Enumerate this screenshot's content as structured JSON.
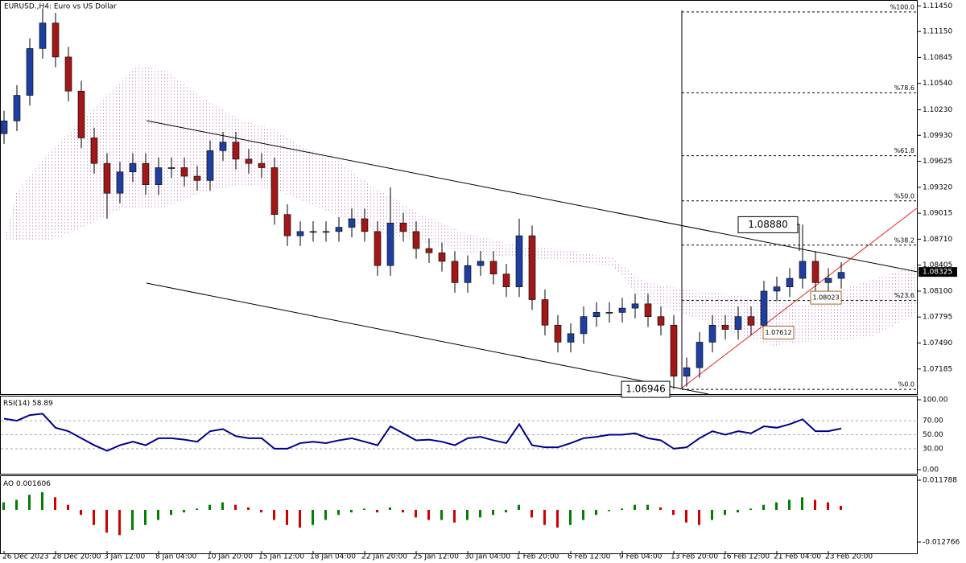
{
  "chart_data": {
    "type": "candlestick",
    "title": "EURUSD.,H4:  Euro vs US Dollar",
    "categories": [
      "26 Dec 2023",
      null,
      null,
      null,
      "28 Dec 20:00",
      null,
      null,
      null,
      "3 Jan 12:00",
      null,
      null,
      null,
      "8 Jan 04:00",
      null,
      null,
      null,
      "10 Jan 20:00",
      null,
      null,
      null,
      "15 Jan 12:00",
      null,
      null,
      null,
      "18 Jan 04:00",
      null,
      null,
      null,
      "22 Jan 20:00",
      null,
      null,
      null,
      "25 Jan 12:00",
      null,
      null,
      null,
      "30 Jan 04:00",
      null,
      null,
      null,
      "1 Feb 20:00",
      null,
      null,
      null,
      "6 Feb 12:00",
      null,
      null,
      null,
      "9 Feb 04:00",
      null,
      null,
      null,
      "13 Feb 20:00",
      null,
      null,
      null,
      "16 Feb 12:00",
      null,
      null,
      null,
      "21 Feb 04:00",
      null,
      null,
      null,
      "23 Feb 20:00",
      null
    ],
    "open": [
      1.0995,
      1.101,
      1.104,
      1.1095,
      1.1125,
      1.1085,
      1.1045,
      1.099,
      1.096,
      1.0925,
      1.095,
      1.096,
      1.0935,
      1.0955,
      1.0955,
      1.0945,
      1.094,
      1.0975,
      1.0985,
      1.0965,
      1.096,
      1.0955,
      1.09,
      1.0875,
      1.088,
      1.088,
      1.088,
      1.0885,
      1.0895,
      1.088,
      1.084,
      1.089,
      1.088,
      1.086,
      1.0855,
      1.0845,
      1.082,
      1.084,
      1.0845,
      1.083,
      1.0815,
      1.0875,
      1.08,
      1.077,
      1.075,
      1.076,
      1.078,
      1.0785,
      1.0785,
      1.079,
      1.0795,
      1.078,
      1.077,
      1.071,
      1.072,
      1.075,
      1.077,
      1.0765,
      1.078,
      1.077,
      1.081,
      1.0815,
      1.0825,
      1.0845,
      1.082,
      1.0825
    ],
    "high": [
      1.1022,
      1.1052,
      1.1107,
      1.1142,
      1.1137,
      1.1097,
      1.1057,
      1.1002,
      1.0972,
      1.0962,
      1.0972,
      1.0972,
      1.0967,
      1.0967,
      1.0967,
      1.0957,
      1.0987,
      1.0997,
      1.0997,
      1.0977,
      1.0972,
      1.0967,
      1.0912,
      1.0892,
      1.0892,
      1.0892,
      1.0897,
      1.0907,
      1.0907,
      1.0892,
      1.0932,
      1.0902,
      1.0892,
      1.0872,
      1.0867,
      1.0857,
      1.0852,
      1.0857,
      1.0857,
      1.0842,
      1.0895,
      1.0887,
      1.0812,
      1.0782,
      1.0772,
      1.0792,
      1.0797,
      1.0797,
      1.0802,
      1.0807,
      1.0807,
      1.0792,
      1.0782,
      1.0732,
      1.0762,
      1.0782,
      1.0782,
      1.0792,
      1.0792,
      1.0822,
      1.0827,
      1.0837,
      1.0888,
      1.0857,
      1.0837,
      1.0844
    ],
    "low": [
      1.0983,
      1.0998,
      1.1028,
      1.1083,
      1.1073,
      1.1033,
      1.0978,
      1.0948,
      1.0895,
      1.0913,
      1.0938,
      1.0923,
      1.0923,
      1.0943,
      1.0933,
      1.0928,
      1.0928,
      1.0963,
      1.0953,
      1.0948,
      1.0943,
      1.0888,
      1.0863,
      1.0863,
      1.0868,
      1.0868,
      1.0868,
      1.0873,
      1.0868,
      1.0828,
      1.0828,
      1.0868,
      1.0848,
      1.0843,
      1.0833,
      1.0808,
      1.0808,
      1.0828,
      1.0818,
      1.0803,
      1.0803,
      1.0788,
      1.0758,
      1.0738,
      1.0738,
      1.0748,
      1.0768,
      1.0773,
      1.0773,
      1.0778,
      1.0768,
      1.0758,
      1.0695,
      1.0698,
      1.0708,
      1.0738,
      1.0753,
      1.0753,
      1.0758,
      1.0758,
      1.0798,
      1.0803,
      1.0813,
      1.0808,
      1.0808,
      1.0813
    ],
    "close": [
      1.101,
      1.104,
      1.1095,
      1.1125,
      1.1085,
      1.1045,
      1.099,
      1.096,
      1.0925,
      1.095,
      1.096,
      1.0935,
      1.0955,
      1.0955,
      1.0945,
      1.094,
      1.0975,
      1.0985,
      1.0965,
      1.096,
      1.0955,
      1.09,
      1.0875,
      1.088,
      1.088,
      1.088,
      1.0885,
      1.0895,
      1.088,
      1.084,
      1.089,
      1.088,
      1.086,
      1.0855,
      1.0845,
      1.082,
      1.084,
      1.0845,
      1.083,
      1.0815,
      1.0875,
      1.08,
      1.077,
      1.075,
      1.076,
      1.078,
      1.0785,
      1.0785,
      1.079,
      1.0795,
      1.078,
      1.077,
      1.071,
      1.072,
      1.075,
      1.077,
      1.0765,
      1.078,
      1.077,
      1.081,
      1.0815,
      1.0825,
      1.0845,
      1.082,
      1.0825,
      1.0832
    ],
    "ylim": [
      1.0689,
      1.1152
    ],
    "yticks": [
      {
        "value": 1.1145,
        "label": "1.11450"
      },
      {
        "value": 1.1115,
        "label": "1.11150"
      },
      {
        "value": 1.10845,
        "label": "1.10845"
      },
      {
        "value": 1.1054,
        "label": "1.10540"
      },
      {
        "value": 1.1023,
        "label": "1.10230"
      },
      {
        "value": 1.0993,
        "label": "1.09930"
      },
      {
        "value": 1.09625,
        "label": "1.09625"
      },
      {
        "value": 1.0932,
        "label": "1.09320"
      },
      {
        "value": 1.09015,
        "label": "1.09015"
      },
      {
        "value": 1.0871,
        "label": "1.08710"
      },
      {
        "value": 1.08405,
        "label": "1.08405"
      },
      {
        "value": 1.081,
        "label": "1.08100"
      },
      {
        "value": 1.07795,
        "label": "1.07795"
      },
      {
        "value": 1.0749,
        "label": "1.07490"
      },
      {
        "value": 1.07185,
        "label": "1.07185"
      }
    ],
    "last_price": {
      "value": 1.08325,
      "label": "1.08325"
    },
    "annotations": [
      {
        "value": 1.0888,
        "label": "1.08880"
      },
      {
        "value": 1.06946,
        "label": "1.06946"
      },
      {
        "value": 1.07612,
        "label": "1.07612"
      },
      {
        "value": 1.08023,
        "label": "1.08023"
      }
    ],
    "fib_levels": [
      {
        "value": 1.1138,
        "label": "%100.0"
      },
      {
        "value": 1.1043,
        "label": "%78.6"
      },
      {
        "value": 1.0969,
        "label": "%61.8"
      },
      {
        "value": 1.0916,
        "label": "%50.0"
      },
      {
        "value": 1.0864,
        "label": "%38.2"
      },
      {
        "value": 1.0799,
        "label": "%23.6"
      },
      {
        "value": 1.06946,
        "label": "%0.0"
      }
    ],
    "indicators": [
      {
        "type": "line",
        "name": "RSI(14)",
        "last": 58.89,
        "color": "#00008b",
        "values": [
          73,
          70,
          78,
          80,
          60,
          55,
          45,
          35,
          27,
          35,
          40,
          35,
          45,
          45,
          43,
          40,
          55,
          58,
          48,
          45,
          45,
          30,
          30,
          38,
          40,
          38,
          42,
          45,
          40,
          35,
          62,
          52,
          42,
          43,
          40,
          35,
          45,
          47,
          42,
          38,
          65,
          35,
          32,
          32,
          38,
          45,
          47,
          50,
          50,
          52,
          45,
          42,
          30,
          32,
          45,
          55,
          50,
          55,
          52,
          62,
          60,
          65,
          72,
          55,
          55,
          58.89
        ],
        "ylim": [
          0,
          100
        ],
        "yticks": [
          {
            "value": 100,
            "label": "100.00"
          },
          {
            "value": 70,
            "label": "70.00"
          },
          {
            "value": 50,
            "label": "50.00"
          },
          {
            "value": 30,
            "label": "30.00"
          },
          {
            "value": 0,
            "label": "0.00"
          }
        ]
      },
      {
        "type": "histogram",
        "name": "AO",
        "last": 0.001606,
        "up_color": "#008000",
        "down_color": "#d00000",
        "values": [
          0.003,
          0.004,
          0.006,
          0.007,
          0.005,
          0.002,
          -0.002,
          -0.006,
          -0.009,
          -0.01,
          -0.008,
          -0.006,
          -0.004,
          -0.002,
          -0.001,
          0.0005,
          0.002,
          0.003,
          0.002,
          0.001,
          -0.001,
          -0.004,
          -0.006,
          -0.007,
          -0.006,
          -0.004,
          -0.002,
          -0.001,
          0.0005,
          -0.001,
          0.001,
          -0.001,
          -0.003,
          -0.004,
          -0.004,
          -0.005,
          -0.004,
          -0.003,
          -0.002,
          -0.001,
          0.002,
          -0.003,
          -0.006,
          -0.007,
          -0.006,
          -0.004,
          -0.002,
          -0.0005,
          0.0005,
          0.002,
          0.002,
          0.001,
          -0.002,
          -0.005,
          -0.006,
          -0.004,
          -0.002,
          -0.001,
          0.0005,
          0.002,
          0.003,
          0.004,
          0.005,
          0.004,
          0.003,
          0.001606
        ],
        "ylim": [
          -0.012766,
          0.011788
        ],
        "yticks": [
          0.011788,
          -0.012766
        ]
      }
    ]
  }
}
